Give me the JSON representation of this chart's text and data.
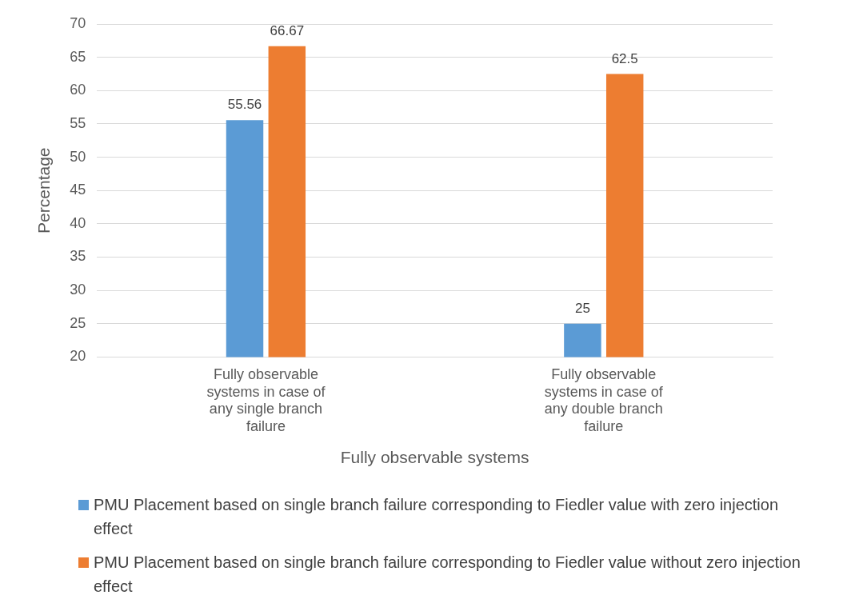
{
  "chart_data": {
    "type": "bar",
    "xlabel": "Fully observable systems",
    "ylabel": "Percentage",
    "categories": [
      "Fully observable systems in case of any single branch failure",
      "Fully observable systems in case of any double branch failure"
    ],
    "series": [
      {
        "name": "PMU Placement based on single branch failure corresponding to Fiedler value with zero injection effect",
        "color": "#5b9bd5",
        "values": [
          55.56,
          25
        ]
      },
      {
        "name": "PMU Placement based on single branch failure corresponding to Fiedler value without zero injection effect",
        "color": "#ed7d31",
        "values": [
          66.67,
          62.5
        ]
      }
    ],
    "ylim": [
      20,
      70
    ],
    "yticks": [
      20,
      25,
      30,
      35,
      40,
      45,
      50,
      55,
      60,
      65,
      70
    ],
    "grid": "y",
    "legend": "bottom",
    "data_labels": true
  }
}
